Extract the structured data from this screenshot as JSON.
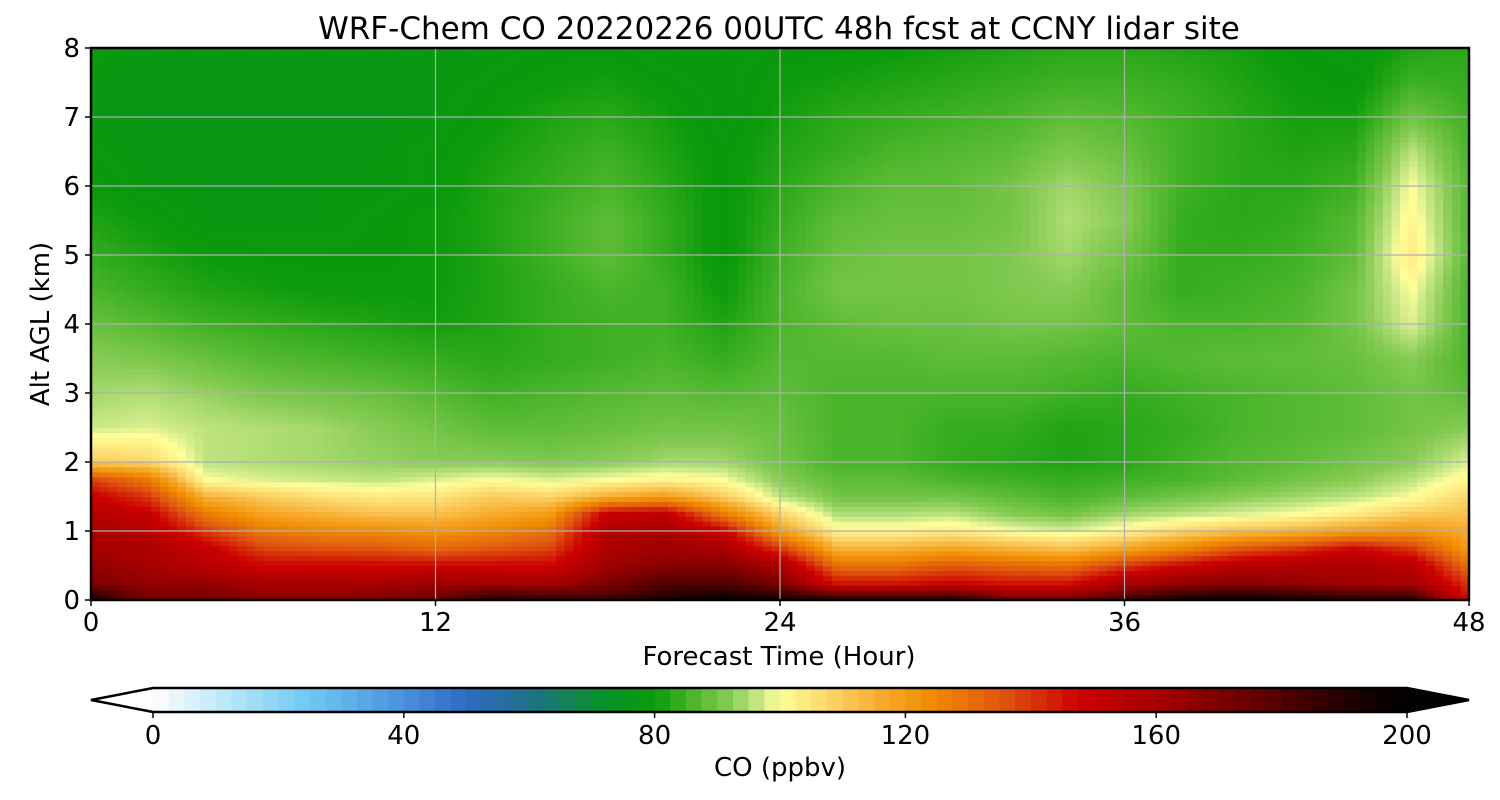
{
  "chart_data": {
    "type": "heatmap",
    "title": "WRF-Chem CO  20220226 00UTC 48h fcst at CCNY lidar site",
    "xlabel": "Forecast Time (Hour)",
    "ylabel": "Alt AGL (km)",
    "xlim": [
      0,
      48
    ],
    "ylim": [
      0,
      8
    ],
    "xticks": [
      0,
      12,
      24,
      36,
      48
    ],
    "yticks": [
      0,
      1,
      2,
      3,
      4,
      5,
      6,
      7,
      8
    ],
    "grid": true,
    "x_hours": [
      0,
      2,
      4,
      6,
      8,
      10,
      12,
      14,
      16,
      18,
      20,
      22,
      24,
      26,
      28,
      30,
      32,
      34,
      36,
      38,
      40,
      42,
      44,
      46,
      48
    ],
    "z_km": [
      0,
      0.25,
      0.5,
      0.75,
      1,
      1.25,
      1.5,
      1.75,
      2,
      2.5,
      3,
      3.5,
      4,
      4.5,
      5,
      5.5,
      6,
      6.5,
      7,
      7.5,
      8
    ],
    "co_ppbv": [
      [
        195,
        172,
        172,
        168,
        168,
        170,
        175,
        190,
        188,
        185,
        192,
        198,
        195,
        190,
        190,
        192,
        175,
        175,
        185,
        195,
        198,
        195,
        190,
        190,
        145
      ],
      [
        170,
        165,
        165,
        160,
        160,
        160,
        162,
        162,
        160,
        170,
        180,
        180,
        170,
        145,
        145,
        148,
        145,
        145,
        158,
        165,
        168,
        165,
        162,
        160,
        140
      ],
      [
        165,
        160,
        155,
        148,
        148,
        148,
        148,
        148,
        148,
        162,
        168,
        168,
        160,
        130,
        130,
        135,
        132,
        130,
        140,
        148,
        155,
        158,
        158,
        155,
        130
      ],
      [
        160,
        158,
        150,
        138,
        136,
        135,
        132,
        135,
        138,
        158,
        162,
        160,
        140,
        115,
        115,
        118,
        115,
        112,
        118,
        125,
        135,
        140,
        148,
        140,
        120
      ],
      [
        160,
        155,
        140,
        128,
        125,
        124,
        122,
        125,
        130,
        158,
        160,
        150,
        120,
        102,
        102,
        104,
        100,
        98,
        102,
        108,
        112,
        115,
        120,
        122,
        116
      ],
      [
        155,
        150,
        128,
        118,
        115,
        112,
        112,
        116,
        120,
        150,
        152,
        128,
        108,
        95,
        95,
        96,
        92,
        90,
        94,
        96,
        98,
        100,
        104,
        110,
        112
      ],
      [
        150,
        140,
        115,
        110,
        106,
        104,
        105,
        110,
        108,
        116,
        120,
        110,
        96,
        90,
        90,
        90,
        88,
        86,
        88,
        90,
        92,
        94,
        96,
        100,
        108
      ],
      [
        138,
        128,
        100,
        98,
        97,
        96,
        98,
        100,
        98,
        100,
        102,
        100,
        92,
        88,
        88,
        86,
        85,
        84,
        85,
        86,
        88,
        90,
        92,
        96,
        102
      ],
      [
        110,
        108,
        96,
        95,
        94,
        93,
        92,
        92,
        91,
        92,
        94,
        94,
        90,
        86,
        86,
        84,
        83,
        82,
        83,
        85,
        87,
        88,
        90,
        92,
        98
      ],
      [
        97,
        98,
        96,
        95,
        94,
        92,
        90,
        88,
        88,
        89,
        90,
        90,
        89,
        86,
        86,
        84,
        84,
        82,
        83,
        84,
        86,
        87,
        88,
        90,
        92
      ],
      [
        94,
        95,
        93,
        91,
        90,
        89,
        87,
        85,
        86,
        87,
        88,
        87,
        88,
        86,
        86,
        86,
        86,
        85,
        84,
        85,
        86,
        87,
        88,
        90,
        88
      ],
      [
        92,
        91,
        89,
        87,
        86,
        85,
        84,
        83,
        84,
        85,
        86,
        84,
        87,
        87,
        87,
        88,
        88,
        87,
        86,
        87,
        88,
        88,
        89,
        92,
        86
      ],
      [
        89,
        87,
        85,
        84,
        83,
        82,
        81,
        82,
        84,
        85,
        85,
        82,
        86,
        88,
        89,
        89,
        90,
        90,
        88,
        86,
        86,
        87,
        90,
        98,
        86
      ],
      [
        86,
        84,
        82,
        81,
        80,
        80,
        80,
        82,
        84,
        86,
        85,
        80,
        86,
        90,
        90,
        90,
        91,
        92,
        88,
        84,
        85,
        86,
        90,
        100,
        86
      ],
      [
        84,
        82,
        80,
        79,
        79,
        79,
        80,
        82,
        85,
        88,
        84,
        79,
        85,
        89,
        90,
        90,
        91,
        94,
        90,
        84,
        84,
        85,
        88,
        104,
        87
      ],
      [
        82,
        80,
        78,
        78,
        78,
        79,
        80,
        82,
        85,
        88,
        84,
        79,
        84,
        88,
        89,
        89,
        90,
        95,
        92,
        84,
        83,
        84,
        87,
        102,
        87
      ],
      [
        80,
        78,
        77,
        77,
        78,
        78,
        79,
        82,
        84,
        86,
        83,
        79,
        83,
        86,
        88,
        88,
        90,
        94,
        91,
        85,
        83,
        83,
        85,
        100,
        87
      ],
      [
        79,
        77,
        77,
        77,
        77,
        78,
        79,
        81,
        83,
        85,
        82,
        79,
        82,
        84,
        86,
        87,
        88,
        91,
        89,
        85,
        83,
        82,
        83,
        96,
        86
      ],
      [
        78,
        77,
        77,
        77,
        77,
        77,
        78,
        80,
        82,
        83,
        81,
        78,
        81,
        83,
        84,
        85,
        86,
        88,
        87,
        85,
        83,
        81,
        81,
        90,
        85
      ],
      [
        78,
        77,
        77,
        77,
        77,
        77,
        78,
        79,
        80,
        81,
        79,
        78,
        80,
        81,
        82,
        83,
        84,
        85,
        85,
        84,
        82,
        80,
        79,
        85,
        84
      ],
      [
        79,
        78,
        77,
        77,
        77,
        77,
        77,
        78,
        79,
        79,
        78,
        78,
        79,
        79,
        80,
        81,
        82,
        83,
        83,
        82,
        81,
        79,
        78,
        82,
        83
      ]
    ],
    "colorbar": {
      "label": "CO  (ppbv)",
      "range": [
        0,
        200
      ],
      "ticks": [
        0,
        40,
        80,
        120,
        160,
        200
      ],
      "extend": "both",
      "orientation": "horizontal",
      "placement": "bottom",
      "colors": {
        "0": "#ffffff",
        "12": "#b8e6f8",
        "25": "#6ec8f2",
        "40": "#4a90dc",
        "50": "#2f6bc4",
        "60": "#1f6f8a",
        "72": "#0a9228",
        "80": "#0a9a0a",
        "86": "#4ab52a",
        "92": "#88cc55",
        "97": "#cce98a",
        "100": "#ffff99",
        "108": "#fbd56a",
        "116": "#f7ab2e",
        "124": "#f08c00",
        "135": "#e05810",
        "148": "#cc0000",
        "162": "#a00000",
        "178": "#5a0000",
        "192": "#1a0000",
        "200": "#000000"
      }
    }
  }
}
